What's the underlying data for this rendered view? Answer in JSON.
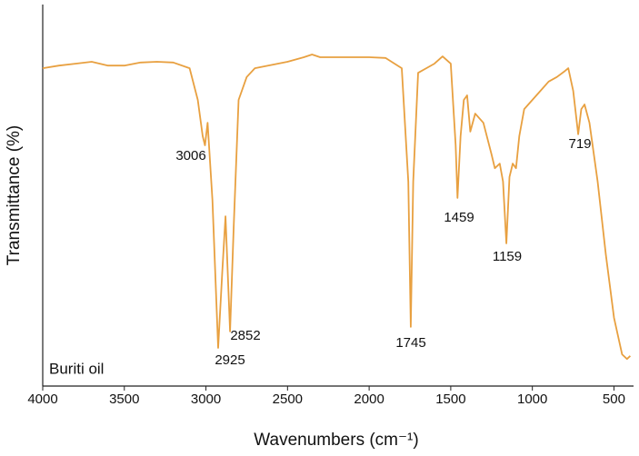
{
  "chart_data": {
    "type": "line",
    "x_label": "Wavenumbers (cm⁻¹)",
    "y_label": "Transmittance (%)",
    "annotation": "Buriti oil",
    "xlim": [
      4000,
      380
    ],
    "xticks": [
      4000,
      3500,
      3000,
      2500,
      2000,
      1500,
      1000,
      500
    ],
    "ylim": [
      0,
      100
    ],
    "peaks": [
      3006,
      2925,
      2852,
      1745,
      1459,
      1159,
      719
    ],
    "series": [
      {
        "color": "#e8a040",
        "x": [
          4000,
          3900,
          3800,
          3700,
          3600,
          3500,
          3400,
          3300,
          3200,
          3100,
          3050,
          3020,
          3006,
          2990,
          2960,
          2925,
          2900,
          2880,
          2852,
          2830,
          2800,
          2750,
          2700,
          2500,
          2400,
          2350,
          2300,
          2000,
          1900,
          1800,
          1760,
          1745,
          1730,
          1700,
          1650,
          1600,
          1550,
          1500,
          1470,
          1459,
          1440,
          1420,
          1400,
          1380,
          1350,
          1300,
          1250,
          1230,
          1200,
          1180,
          1159,
          1140,
          1120,
          1100,
          1080,
          1050,
          1000,
          950,
          900,
          850,
          800,
          780,
          750,
          719,
          700,
          680,
          650,
          600,
          550,
          500,
          450,
          420,
          400
        ],
        "values": [
          83.3,
          84.0,
          84.5,
          85.0,
          84.0,
          84.0,
          84.8,
          85.0,
          84.8,
          83.3,
          75.0,
          65.5,
          63.1,
          69.0,
          48.8,
          10.0,
          29.8,
          44.5,
          14.3,
          41.7,
          75.0,
          81.0,
          83.3,
          85.0,
          86.2,
          86.9,
          86.2,
          86.2,
          86.0,
          83.3,
          53.6,
          15.5,
          53.6,
          82.1,
          83.3,
          84.5,
          86.4,
          84.5,
          63.1,
          49.3,
          65.5,
          75.0,
          76.2,
          66.7,
          71.4,
          69.0,
          60.7,
          57.1,
          58.3,
          53.6,
          37.4,
          54.8,
          58.3,
          57.1,
          65.5,
          72.6,
          75.0,
          77.4,
          79.8,
          81.0,
          82.6,
          83.3,
          77.4,
          66.0,
          72.6,
          73.8,
          69.0,
          53.6,
          34.5,
          17.9,
          8.3,
          7.1,
          7.9
        ]
      }
    ]
  }
}
